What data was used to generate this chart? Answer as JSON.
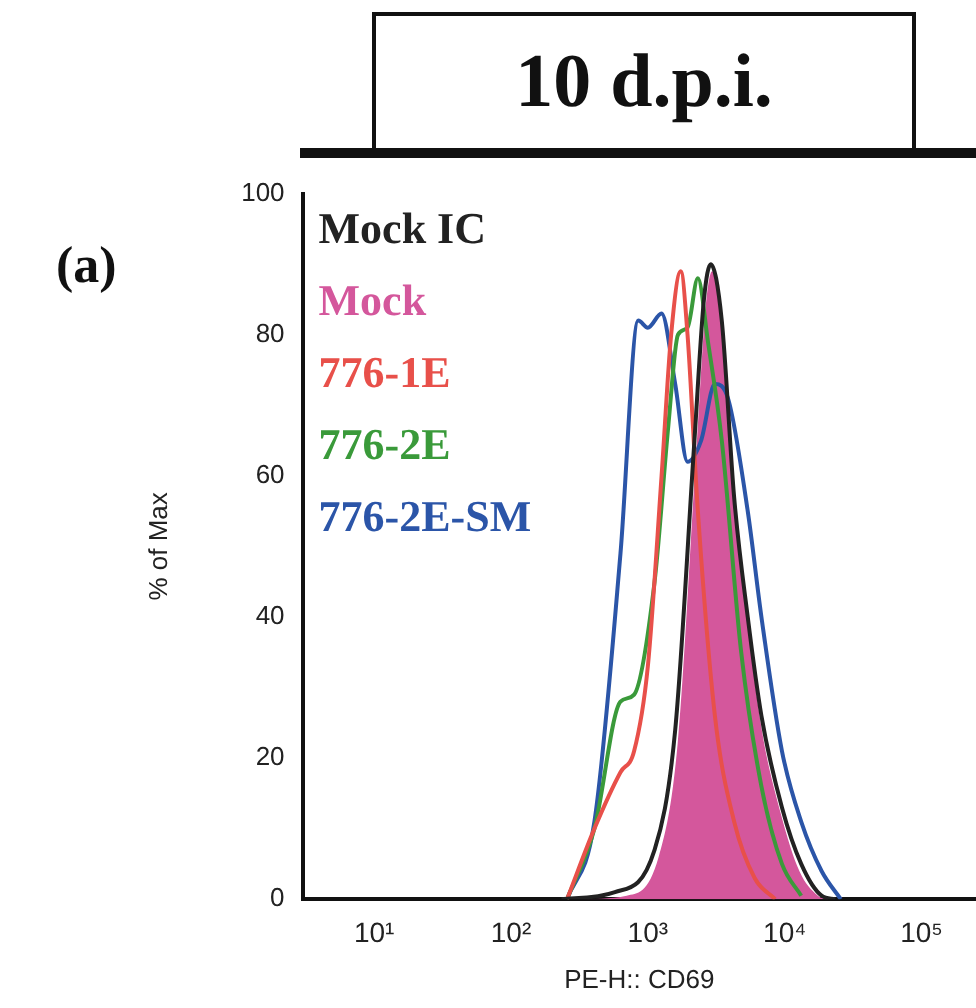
{
  "chart_data": {
    "type": "line",
    "title": "10 d.p.i.",
    "xlabel": "PE-H:: CD69",
    "ylabel": "% of Max",
    "annotations": [
      "(a)"
    ],
    "log": "x",
    "xlim": [
      3,
      250000
    ],
    "xticks": [
      {
        "value": 10,
        "label": "10¹"
      },
      {
        "value": 100,
        "label": "10²"
      },
      {
        "value": 1000,
        "label": "10³"
      },
      {
        "value": 10000,
        "label": "10⁴"
      },
      {
        "value": 100000,
        "label": "10⁵"
      }
    ],
    "ylim": [
      0,
      100
    ],
    "yticks": [
      0,
      20,
      40,
      60,
      80,
      100
    ],
    "grid": false,
    "legend": "top left",
    "marker": "none",
    "line_style": "solid",
    "series": [
      {
        "name": "Mock IC",
        "type": "line",
        "color": "#222222",
        "x": [
          234,
          575,
          1120,
          1585,
          2190,
          2570,
          2880,
          3470,
          4270,
          5370,
          6760,
          9550,
          13200,
          18600,
          23400
        ],
        "values": [
          0,
          1,
          7,
          24,
          65,
          85,
          90,
          82,
          57,
          40,
          26,
          13,
          5,
          0.5,
          0
        ]
      },
      {
        "name": "Mock",
        "type": "area",
        "color": "#d4579c",
        "x": [
          300,
          700,
          1200,
          1650,
          2250,
          2650,
          2950,
          3550,
          4350,
          5450,
          6800,
          9400,
          12800,
          17500,
          21000
        ],
        "values": [
          0,
          0.5,
          6,
          22,
          63,
          84,
          89,
          80,
          55,
          38,
          24,
          12,
          4,
          0.5,
          0
        ]
      },
      {
        "name": "776-1E",
        "type": "line",
        "color": "#e8504a",
        "x": [
          257,
          407,
          631,
          794,
          1000,
          1260,
          1480,
          1740,
          1950,
          2320,
          3090,
          4270,
          6030,
          8510
        ],
        "values": [
          0,
          10,
          18,
          21,
          33,
          60,
          80,
          89,
          80,
          55,
          26,
          11,
          3,
          0
        ]
      },
      {
        "name": "776-2E",
        "type": "line",
        "color": "#3a9a3a",
        "x": [
          257,
          407,
          631,
          794,
          1120,
          1410,
          1660,
          1950,
          2320,
          2750,
          3470,
          4810,
          6760,
          9550,
          13200
        ],
        "values": [
          0,
          10,
          28,
          29,
          45,
          67,
          80,
          81,
          88,
          79,
          65,
          35,
          16,
          5,
          0.5
        ]
      },
      {
        "name": "776-2E-SM",
        "type": "line",
        "color": "#2b55a8",
        "x": [
          257,
          407,
          631,
          850,
          1000,
          1260,
          1585,
          1950,
          2450,
          3090,
          3850,
          5370,
          6760,
          9550,
          13200,
          18600,
          25700
        ],
        "values": [
          0,
          11,
          49,
          82,
          81,
          83,
          73,
          62,
          65,
          73,
          71,
          55,
          40,
          21,
          11,
          4,
          0
        ]
      }
    ]
  }
}
